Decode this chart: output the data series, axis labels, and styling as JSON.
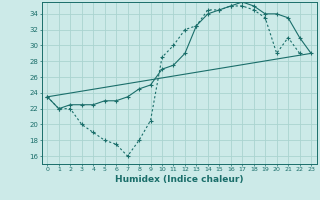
{
  "xlabel": "Humidex (Indice chaleur)",
  "bg_color": "#cceae8",
  "grid_color": "#aad4d0",
  "line_color": "#1a6e6a",
  "xlim": [
    -0.5,
    23.5
  ],
  "ylim": [
    15,
    35.5
  ],
  "xticks": [
    0,
    1,
    2,
    3,
    4,
    5,
    6,
    7,
    8,
    9,
    10,
    11,
    12,
    13,
    14,
    15,
    16,
    17,
    18,
    19,
    20,
    21,
    22,
    23
  ],
  "yticks": [
    16,
    18,
    20,
    22,
    24,
    26,
    28,
    30,
    32,
    34
  ],
  "line1_x": [
    0,
    1,
    2,
    3,
    4,
    5,
    6,
    7,
    8,
    9,
    10,
    11,
    12,
    13,
    14,
    15,
    16,
    17,
    18,
    19,
    20,
    21,
    22
  ],
  "line1_y": [
    23.5,
    22,
    22,
    20,
    19,
    18,
    17.5,
    16,
    18,
    20.5,
    28.5,
    30,
    32,
    32.5,
    34.5,
    34.5,
    35,
    35,
    34.5,
    33.5,
    29,
    31,
    29
  ],
  "line2_x": [
    0,
    1,
    2,
    3,
    4,
    5,
    6,
    7,
    8,
    9,
    10,
    11,
    12,
    13,
    14,
    15,
    16,
    17,
    18,
    19,
    20,
    21,
    22,
    23
  ],
  "line2_y": [
    23.5,
    22,
    22.5,
    22.5,
    22.5,
    23,
    23,
    23.5,
    24.5,
    25,
    27,
    27.5,
    29,
    32.5,
    34,
    34.5,
    35,
    35.5,
    35,
    34,
    34,
    33.5,
    31,
    29
  ],
  "line3_x": [
    0,
    23
  ],
  "line3_y": [
    23.5,
    29
  ]
}
